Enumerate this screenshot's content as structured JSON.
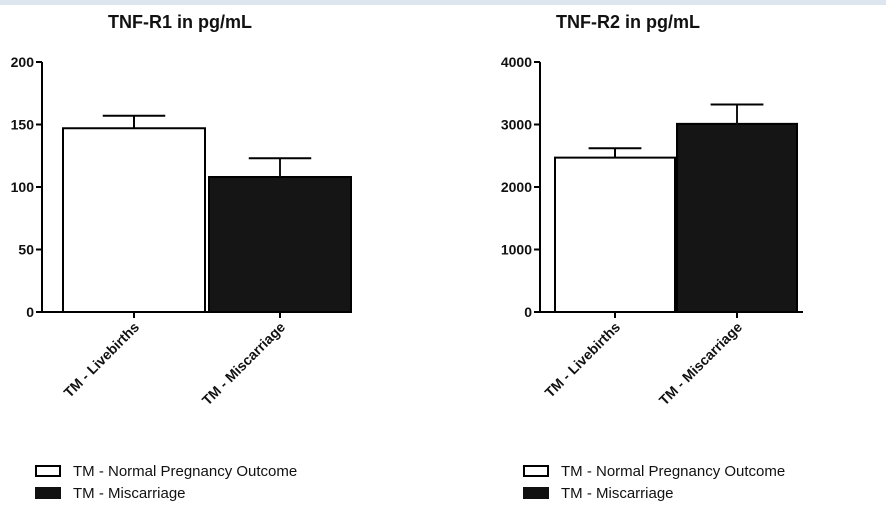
{
  "colors": {
    "bar_open": "#ffffff",
    "bar_filled": "#151515",
    "axis": "#000000",
    "frame_strip": "#dde6ee"
  },
  "chart_data": [
    {
      "type": "bar",
      "title": "TNF-R1 in pg/mL",
      "xlabel": "",
      "ylabel": "",
      "categories": [
        "TM - Livebirths",
        "TM - Miscarriage"
      ],
      "values": [
        147,
        108
      ],
      "error": [
        10,
        15
      ],
      "ylim": [
        0,
        200
      ],
      "yticks": [
        "0",
        "50",
        "100",
        "150",
        "200"
      ],
      "bar_styles": [
        "open",
        "filled"
      ],
      "grid": false,
      "legend": {
        "placement": "bottom",
        "entries": [
          {
            "label": "TM - Normal Pregnancy Outcome",
            "style": "open"
          },
          {
            "label": "TM - Miscarriage",
            "style": "filled"
          }
        ]
      }
    },
    {
      "type": "bar",
      "title": "TNF-R2 in pg/mL",
      "xlabel": "",
      "ylabel": "",
      "categories": [
        "TM - Livebirths",
        "TM - Miscarriage"
      ],
      "values": [
        2470,
        3010
      ],
      "error": [
        150,
        310
      ],
      "ylim": [
        0,
        4000
      ],
      "yticks": [
        "0",
        "1000",
        "2000",
        "3000",
        "4000"
      ],
      "bar_styles": [
        "open",
        "filled"
      ],
      "grid": false,
      "legend": {
        "placement": "bottom",
        "entries": [
          {
            "label": "TM - Normal Pregnancy Outcome",
            "style": "open"
          },
          {
            "label": "TM - Miscarriage",
            "style": "filled"
          }
        ]
      }
    }
  ]
}
